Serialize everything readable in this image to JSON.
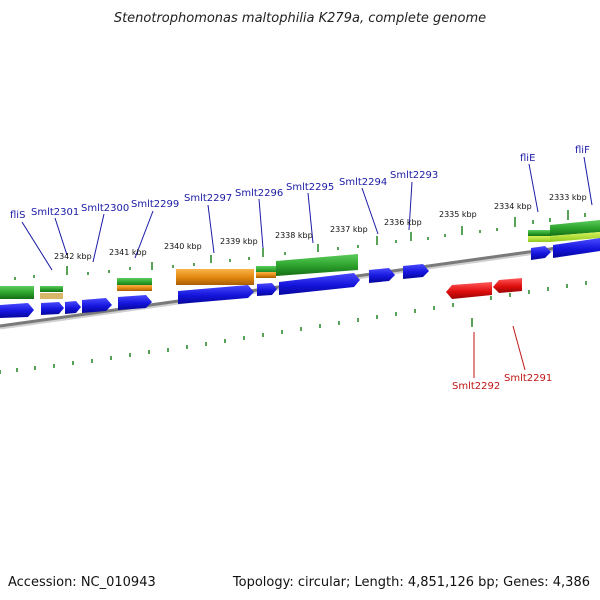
{
  "header": {
    "title": "Stenotrophomonas maltophilia K279a, complete genome"
  },
  "footer": {
    "accession": "Accession: NC_010943",
    "summary": "Topology: circular; Length: 4,851,126 bp; Genes: 4,386"
  },
  "scale_labels": [
    "2342 kbp",
    "2341 kbp",
    "2340 kbp",
    "2339 kbp",
    "2338 kbp",
    "2337 kbp",
    "2336 kbp",
    "2335 kbp",
    "2334 kbp",
    "2333 kbp"
  ],
  "genes_top": [
    "fliS",
    "Smlt2301",
    "Smlt2300",
    "Smlt2299",
    "Smlt2297",
    "Smlt2296",
    "Smlt2295",
    "Smlt2294",
    "Smlt2293",
    "fliE",
    "fliF"
  ],
  "genes_bottom": [
    "Smlt2292",
    "Smlt2291"
  ],
  "colors": {
    "forward_gene": "#1414dc",
    "reverse_gene": "#e00e0e",
    "feature_green": "#2fa52f",
    "feature_orange": "#e58a12",
    "backbone": "#7a7a7a",
    "tick": "#2f8a2f",
    "top_label": "#1a1aa6",
    "bottom_label": "#c01616"
  }
}
